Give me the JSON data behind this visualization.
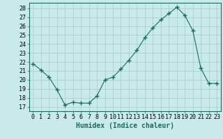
{
  "x": [
    0,
    1,
    2,
    3,
    4,
    5,
    6,
    7,
    8,
    9,
    10,
    11,
    12,
    13,
    14,
    15,
    16,
    17,
    18,
    19,
    20,
    21,
    22,
    23
  ],
  "y": [
    21.8,
    21.1,
    20.3,
    18.9,
    17.2,
    17.5,
    17.4,
    17.4,
    18.2,
    20.0,
    20.3,
    21.2,
    22.2,
    23.3,
    24.7,
    25.8,
    26.7,
    27.4,
    28.1,
    27.2,
    25.5,
    21.3,
    19.6,
    19.6
  ],
  "line_color": "#1a6b5a",
  "marker": "+",
  "marker_size": 4,
  "bg_color": "#c8eaea",
  "grid_color": "#a8c8c8",
  "xlabel": "Humidex (Indice chaleur)",
  "ylabel_ticks": [
    17,
    18,
    19,
    20,
    21,
    22,
    23,
    24,
    25,
    26,
    27,
    28
  ],
  "ylim": [
    16.5,
    28.6
  ],
  "xlim": [
    -0.5,
    23.5
  ],
  "xticks": [
    0,
    1,
    2,
    3,
    4,
    5,
    6,
    7,
    8,
    9,
    10,
    11,
    12,
    13,
    14,
    15,
    16,
    17,
    18,
    19,
    20,
    21,
    22,
    23
  ],
  "font_size_axis": 6,
  "font_size_label": 7,
  "label_color": "#1a6b5a"
}
